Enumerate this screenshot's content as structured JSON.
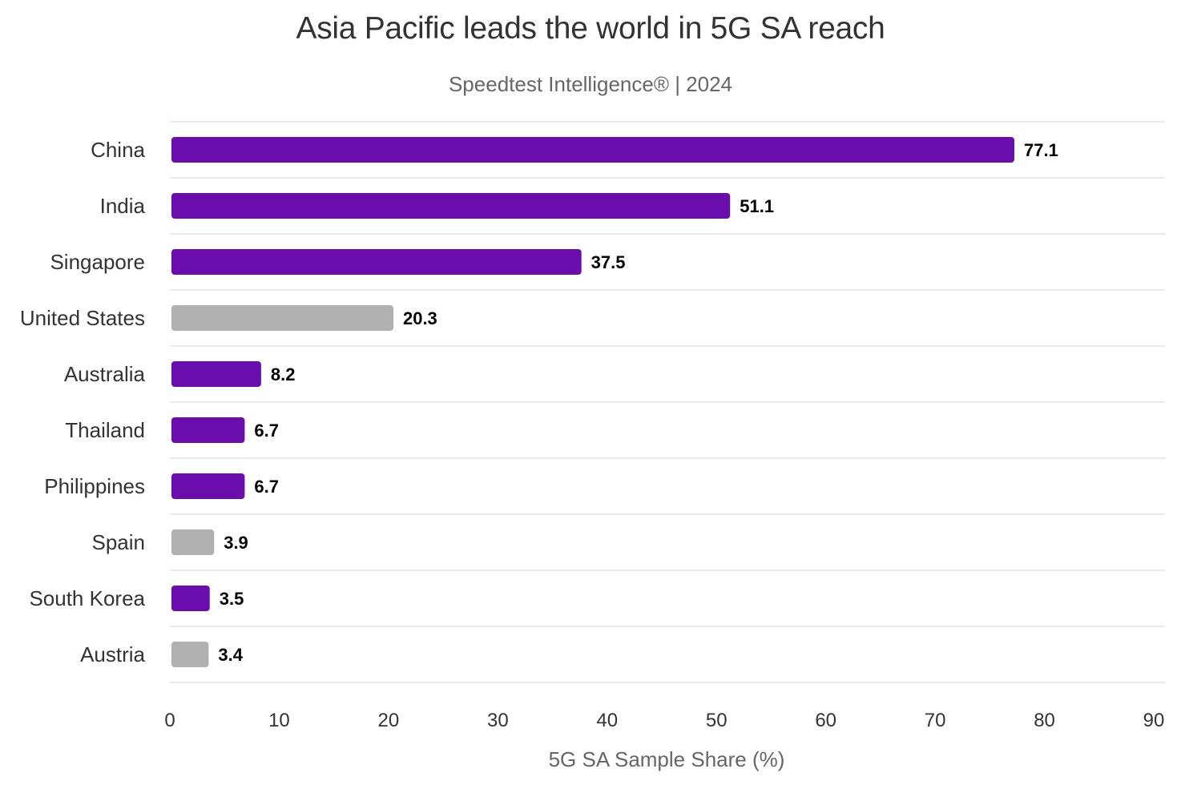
{
  "chart_data": {
    "type": "bar",
    "orientation": "horizontal",
    "title": "Asia Pacific leads the world in 5G SA reach",
    "subtitle": "Speedtest Intelligence® | 2024",
    "xlabel": "5G SA Sample Share (%)",
    "ylabel": "",
    "xlim": [
      0,
      90
    ],
    "xticks": [
      "0",
      "10",
      "20",
      "30",
      "40",
      "50",
      "60",
      "70",
      "80",
      "90"
    ],
    "categories": [
      "China",
      "India",
      "Singapore",
      "United States",
      "Australia",
      "Thailand",
      "Philippines",
      "Spain",
      "South Korea",
      "Austria"
    ],
    "values": [
      77.1,
      51.1,
      37.5,
      20.3,
      8.2,
      6.7,
      6.7,
      3.9,
      3.5,
      3.4
    ],
    "value_labels": [
      "77.1",
      "51.1",
      "37.5",
      "20.3",
      "8.2",
      "6.7",
      "6.7",
      "3.9",
      "3.5",
      "3.4"
    ],
    "groups": [
      "asia-pacific",
      "asia-pacific",
      "asia-pacific",
      "other",
      "asia-pacific",
      "asia-pacific",
      "asia-pacific",
      "other",
      "asia-pacific",
      "other"
    ],
    "colors": {
      "asia-pacific": "#6a0dad",
      "other": "#b0b0b0"
    },
    "grid": "horizontal row separators",
    "legend": "none"
  }
}
